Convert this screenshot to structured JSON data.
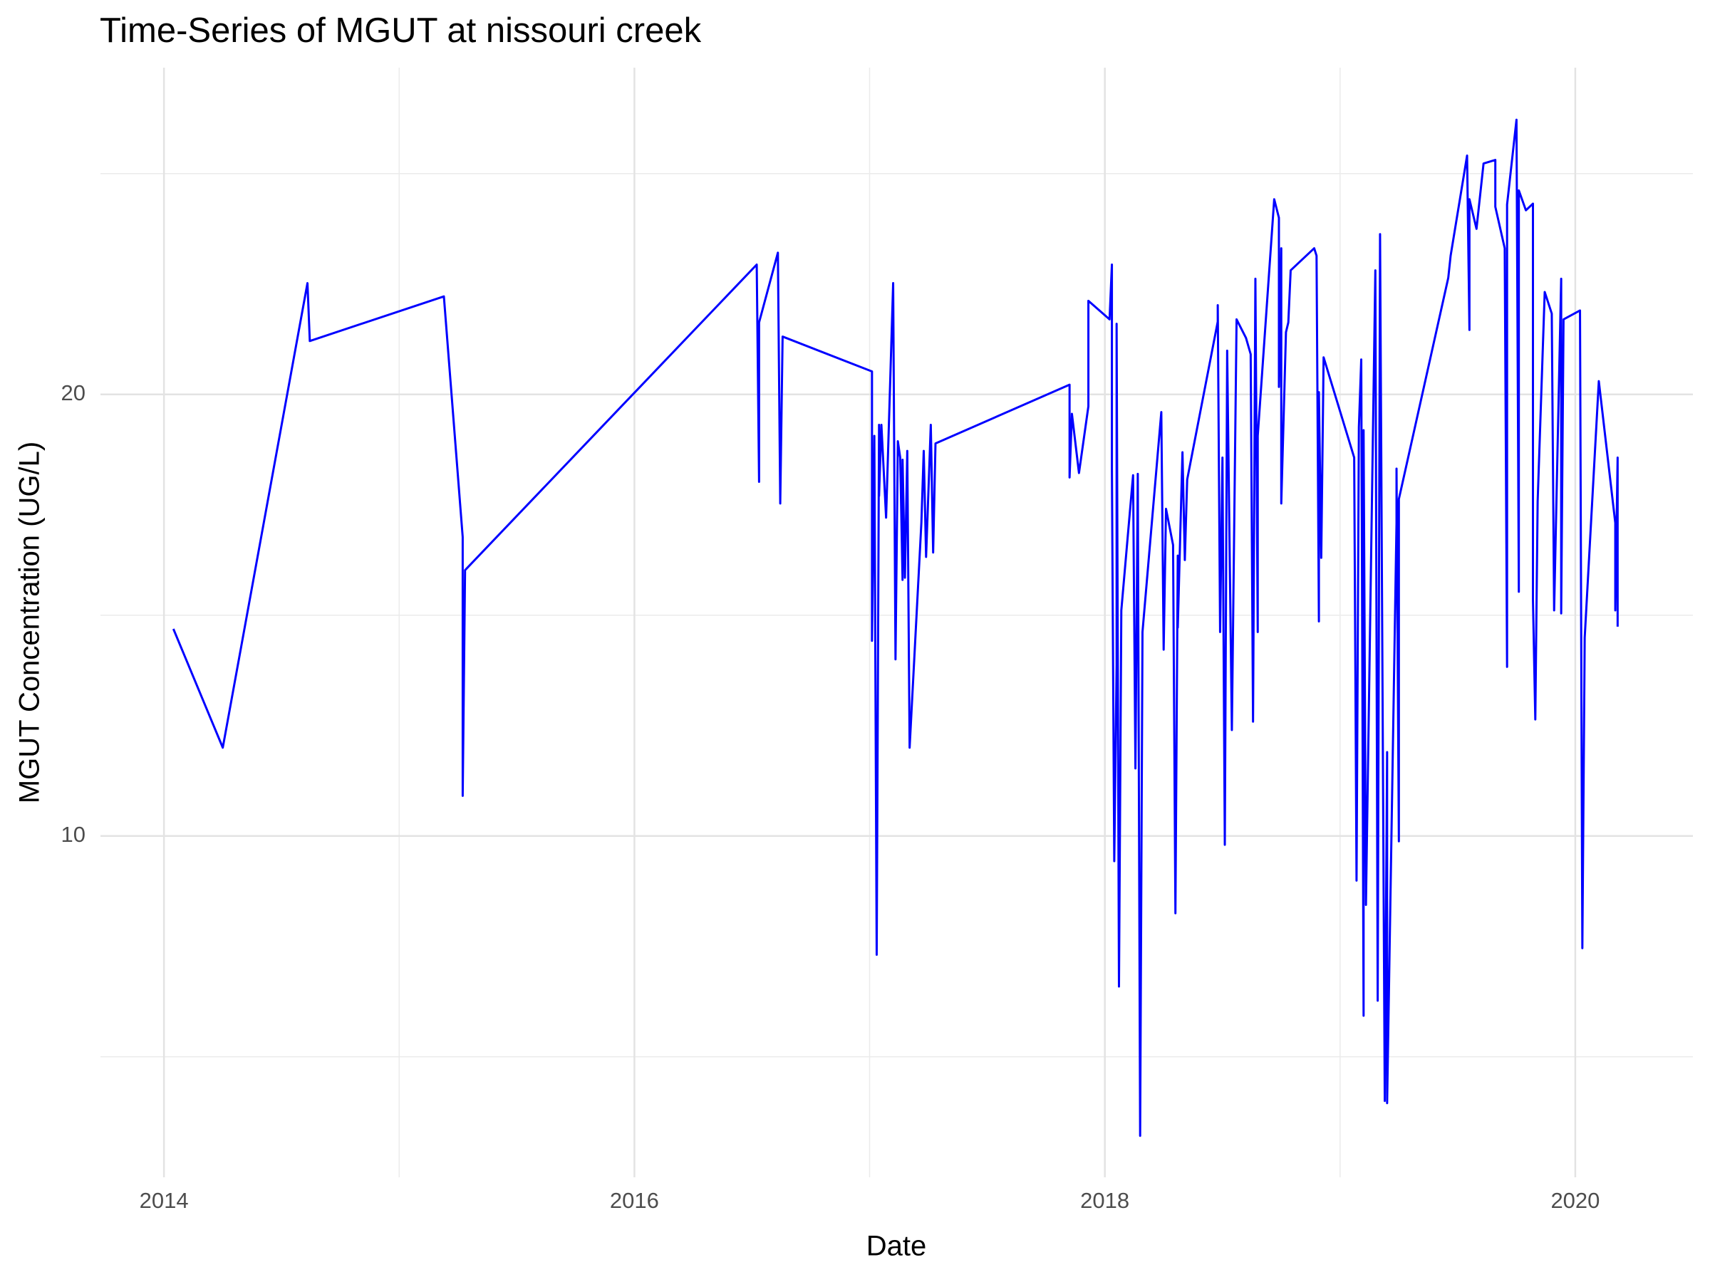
{
  "chart_data": {
    "type": "line",
    "title": "Time-Series of MGUT at nissouri creek",
    "x_label": "Date",
    "y_label": "MGUT Concentration (UG/L)",
    "color": "#0000ff",
    "grid": true,
    "xlim": [
      2013.73,
      2020.5
    ],
    "ylim": [
      2.27,
      27.4
    ],
    "xticks": [
      2014,
      2016,
      2018,
      2020
    ],
    "yticks": [
      10,
      20
    ],
    "x_minor_grid": [
      2015,
      2017,
      2019
    ],
    "y_minor_grid": [
      5,
      15,
      25
    ],
    "x": [
      2014.04,
      2014.25,
      2014.61,
      2014.62,
      2015.19,
      2015.27,
      2015.27,
      2015.28,
      2016.52,
      2016.53,
      2016.53,
      2016.61,
      2016.62,
      2016.63,
      2017.01,
      2017.01,
      2017.02,
      2017.03,
      2017.04,
      2017.04,
      2017.05,
      2017.07,
      2017.1,
      2017.11,
      2017.12,
      2017.13,
      2017.14,
      2017.14,
      2017.15,
      2017.16,
      2017.17,
      2017.22,
      2017.23,
      2017.24,
      2017.26,
      2017.27,
      2017.28,
      2017.85,
      2017.85,
      2017.86,
      2017.89,
      2017.93,
      2017.93,
      2018.02,
      2018.03,
      2018.03,
      2018.04,
      2018.05,
      2018.05,
      2018.06,
      2018.07,
      2018.12,
      2018.13,
      2018.14,
      2018.15,
      2018.16,
      2018.24,
      2018.25,
      2018.26,
      2018.29,
      2018.3,
      2018.31,
      2018.31,
      2018.33,
      2018.34,
      2018.35,
      2018.48,
      2018.48,
      2018.49,
      2018.5,
      2018.51,
      2018.52,
      2018.54,
      2018.56,
      2018.6,
      2018.62,
      2018.63,
      2018.64,
      2018.65,
      2018.65,
      2018.72,
      2018.74,
      2018.74,
      2018.75,
      2018.75,
      2018.77,
      2018.78,
      2018.79,
      2018.89,
      2018.9,
      2018.91,
      2018.91,
      2018.92,
      2018.93,
      2019.06,
      2019.07,
      2019.08,
      2019.09,
      2019.1,
      2019.1,
      2019.11,
      2019.15,
      2019.16,
      2019.17,
      2019.19,
      2019.2,
      2019.2,
      2019.24,
      2019.24,
      2019.25,
      2019.25,
      2019.46,
      2019.47,
      2019.54,
      2019.55,
      2019.55,
      2019.58,
      2019.61,
      2019.66,
      2019.66,
      2019.7,
      2019.71,
      2019.71,
      2019.75,
      2019.76,
      2019.76,
      2019.79,
      2019.82,
      2019.82,
      2019.83,
      2019.84,
      2019.87,
      2019.9,
      2019.91,
      2019.94,
      2019.94,
      2019.95,
      2020.02,
      2020.03,
      2020.04,
      2020.1,
      2020.17,
      2020.17,
      2020.18,
      2020.18
    ],
    "values": [
      14.69,
      12.0,
      22.52,
      21.21,
      22.22,
      16.77,
      10.91,
      16.02,
      22.94,
      18.02,
      21.63,
      23.21,
      17.53,
      21.31,
      20.52,
      14.42,
      19.06,
      7.31,
      19.31,
      17.7,
      19.31,
      17.21,
      22.52,
      14.0,
      18.94,
      18.57,
      15.8,
      18.52,
      15.85,
      18.72,
      12.0,
      17.09,
      18.72,
      16.32,
      19.31,
      16.42,
      18.89,
      20.22,
      18.12,
      19.56,
      18.22,
      19.73,
      22.12,
      21.7,
      22.94,
      18.32,
      9.43,
      13.88,
      21.6,
      6.59,
      15.11,
      18.17,
      11.53,
      18.2,
      3.21,
      14.62,
      19.6,
      14.22,
      17.41,
      16.59,
      8.25,
      16.35,
      14.72,
      18.69,
      16.25,
      18.07,
      21.65,
      22.02,
      14.62,
      18.57,
      9.8,
      20.99,
      12.4,
      21.7,
      21.28,
      20.91,
      12.59,
      22.62,
      14.62,
      19.06,
      24.42,
      24.0,
      20.17,
      23.31,
      17.53,
      21.41,
      21.63,
      22.81,
      23.31,
      23.14,
      14.86,
      20.05,
      16.3,
      20.84,
      18.57,
      8.99,
      19.26,
      20.79,
      5.93,
      19.19,
      8.44,
      22.81,
      6.27,
      23.63,
      4.0,
      11.9,
      3.95,
      17.09,
      18.32,
      9.88,
      17.63,
      22.64,
      23.14,
      25.41,
      21.46,
      24.42,
      23.75,
      25.23,
      25.31,
      24.25,
      23.31,
      13.83,
      24.3,
      26.22,
      15.53,
      24.62,
      24.17,
      24.32,
      15.36,
      12.64,
      17.58,
      22.32,
      21.83,
      15.11,
      22.62,
      15.04,
      21.7,
      21.9,
      7.46,
      14.49,
      20.3,
      17.09,
      15.11,
      18.57,
      14.74
    ]
  }
}
